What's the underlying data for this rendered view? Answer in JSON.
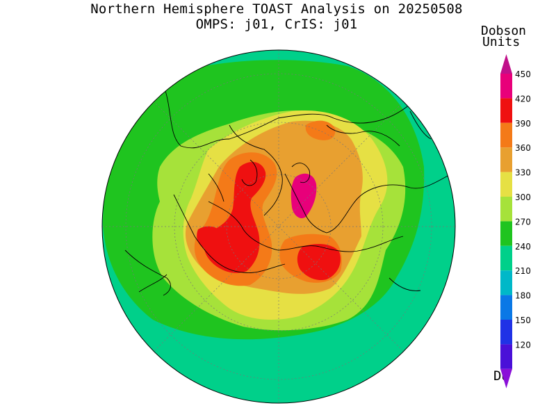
{
  "title": {
    "line1": "Northern Hemisphere TOAST Analysis on 20250508",
    "line2": "OMPS: j01, CrIS: j01"
  },
  "colorbar": {
    "title_line1": "Dobson",
    "title_line2": "Units",
    "unit_label": "DU",
    "levels": [
      {
        "label": "450",
        "color": "#e8007a"
      },
      {
        "label": "420",
        "color": "#ef1010"
      },
      {
        "label": "390",
        "color": "#f47a18"
      },
      {
        "label": "360",
        "color": "#e8a030"
      },
      {
        "label": "330",
        "color": "#e6e044"
      },
      {
        "label": "300",
        "color": "#a6e23a"
      },
      {
        "label": "270",
        "color": "#1fc41f"
      },
      {
        "label": "240",
        "color": "#00d08a"
      },
      {
        "label": "210",
        "color": "#00b8c8"
      },
      {
        "label": "180",
        "color": "#0a78e6"
      },
      {
        "label": "150",
        "color": "#2032e6"
      },
      {
        "label": "120",
        "color": "#4a10d8"
      }
    ],
    "bottom_color": "#8a10d8",
    "top_color": "#c0108a"
  },
  "map": {
    "projection": "north-polar-stereographic",
    "colors": {
      "c240": "#00d08a",
      "c270": "#1fc41f",
      "c300": "#a6e23a",
      "c330": "#e6e044",
      "c360": "#e8a030",
      "c390": "#f47a18",
      "c420": "#ef1010",
      "c450": "#e8007a"
    }
  }
}
